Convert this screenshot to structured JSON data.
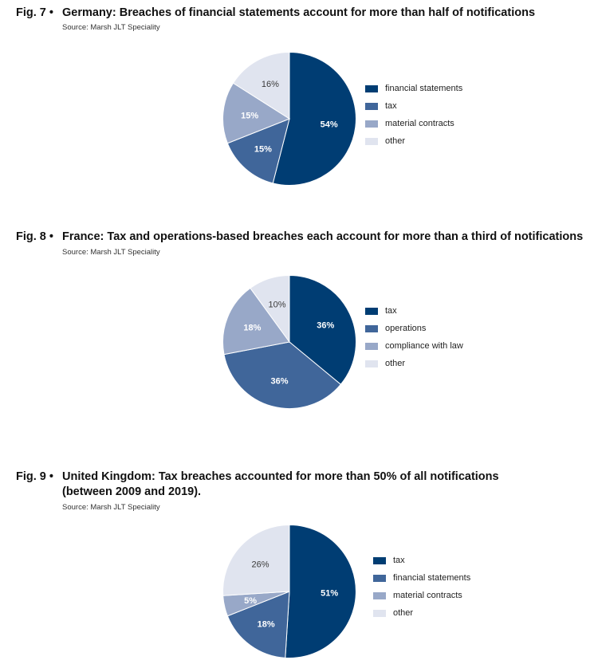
{
  "colors": {
    "c1": "#003d73",
    "c2": "#40669a",
    "c3": "#98a8c8",
    "c4": "#e0e4ef"
  },
  "figures": [
    {
      "number": "Fig. 7 •",
      "title": "Germany: Breaches of financial statements account for more than half of notifications",
      "title_line2": "",
      "source": "Source: Marsh JLT Speciality"
    },
    {
      "number": "Fig. 8 •",
      "title": "France: Tax and operations-based breaches each account for more than a third of notifications",
      "title_line2": "",
      "source": "Source: Marsh JLT Speciality"
    },
    {
      "number": "Fig. 9 •",
      "title": "United Kingdom: Tax breaches accounted for  more than 50% of all notifications",
      "title_line2": "(between 2009 and 2019).",
      "source": "Source: Marsh JLT Speciality"
    }
  ],
  "chart_data": [
    {
      "type": "pie",
      "title": "Germany: Breaches of financial statements account for more than half of notifications",
      "categories": [
        "financial statements",
        "tax",
        "material contracts",
        "other"
      ],
      "values": [
        54,
        15,
        15,
        16
      ],
      "labels": [
        "54%",
        "15%",
        "15%",
        "16%"
      ],
      "legend": "right"
    },
    {
      "type": "pie",
      "title": "France: Tax and operations-based breaches each account for more than a third of notifications",
      "categories": [
        "tax",
        "operations",
        "compliance with law",
        "other"
      ],
      "values": [
        36,
        36,
        18,
        10
      ],
      "labels": [
        "36%",
        "36%",
        "18%",
        "10%"
      ],
      "legend": "right"
    },
    {
      "type": "pie",
      "title": "United Kingdom: Tax breaches accounted for more than 50% of all notifications (between 2009 and 2019).",
      "categories": [
        "tax",
        "financial statements",
        "material contracts",
        "other"
      ],
      "values": [
        51,
        18,
        5,
        26
      ],
      "labels": [
        "51%",
        "18%",
        "5%",
        "26%"
      ],
      "legend": "right"
    }
  ]
}
